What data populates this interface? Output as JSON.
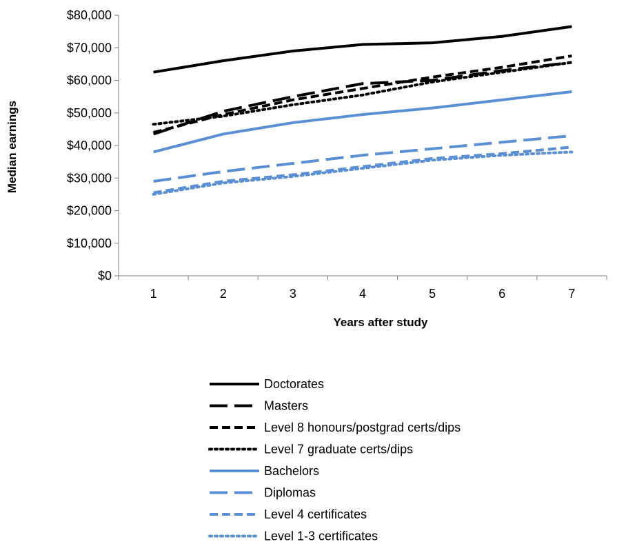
{
  "chart_data": {
    "type": "line",
    "title": "",
    "xlabel": "Years after study",
    "ylabel": "Median earnings",
    "x": [
      1,
      2,
      3,
      4,
      5,
      6,
      7
    ],
    "xlim": [
      0.5,
      7.5
    ],
    "ylim": [
      0,
      80000
    ],
    "yticks": [
      0,
      10000,
      20000,
      30000,
      40000,
      50000,
      60000,
      70000,
      80000
    ],
    "ytick_labels": [
      "$0",
      "$10,000",
      "$20,000",
      "$30,000",
      "$40,000",
      "$50,000",
      "$60,000",
      "$70,000",
      "$80,000"
    ],
    "xtick_labels": [
      "1",
      "2",
      "3",
      "4",
      "5",
      "6",
      "7"
    ],
    "grid": false,
    "legend_position": "bottom",
    "series": [
      {
        "name": "Doctorates",
        "color": "#000000",
        "dash": "solid",
        "values": [
          62500,
          66000,
          69000,
          71000,
          71500,
          73500,
          76500
        ]
      },
      {
        "name": "Masters",
        "color": "#000000",
        "dash": "long-dash",
        "values": [
          43500,
          50500,
          55000,
          59000,
          60000,
          63000,
          65500
        ]
      },
      {
        "name": "Level 8 honours/postgrad certs/dips",
        "color": "#000000",
        "dash": "dash",
        "values": [
          44000,
          49500,
          54000,
          57500,
          61000,
          64000,
          67500
        ]
      },
      {
        "name": "Level 7 graduate certs/dips",
        "color": "#000000",
        "dash": "dot",
        "values": [
          46500,
          49000,
          52500,
          55500,
          59500,
          62500,
          65500
        ]
      },
      {
        "name": "Bachelors",
        "color": "#5b8fd4",
        "dash": "solid",
        "values": [
          38000,
          43500,
          47000,
          49500,
          51500,
          54000,
          56500
        ]
      },
      {
        "name": "Diplomas",
        "color": "#5b8fd4",
        "dash": "long-dash",
        "values": [
          29000,
          32000,
          34500,
          37000,
          39000,
          41000,
          43000
        ]
      },
      {
        "name": "Level 4 certificates",
        "color": "#5b8fd4",
        "dash": "dash",
        "values": [
          25500,
          29000,
          31000,
          33500,
          36000,
          37500,
          39500
        ]
      },
      {
        "name": "Level 1-3 certificates",
        "color": "#5b8fd4",
        "dash": "dot",
        "values": [
          25000,
          28500,
          30500,
          33000,
          35500,
          37000,
          38000
        ]
      }
    ]
  }
}
